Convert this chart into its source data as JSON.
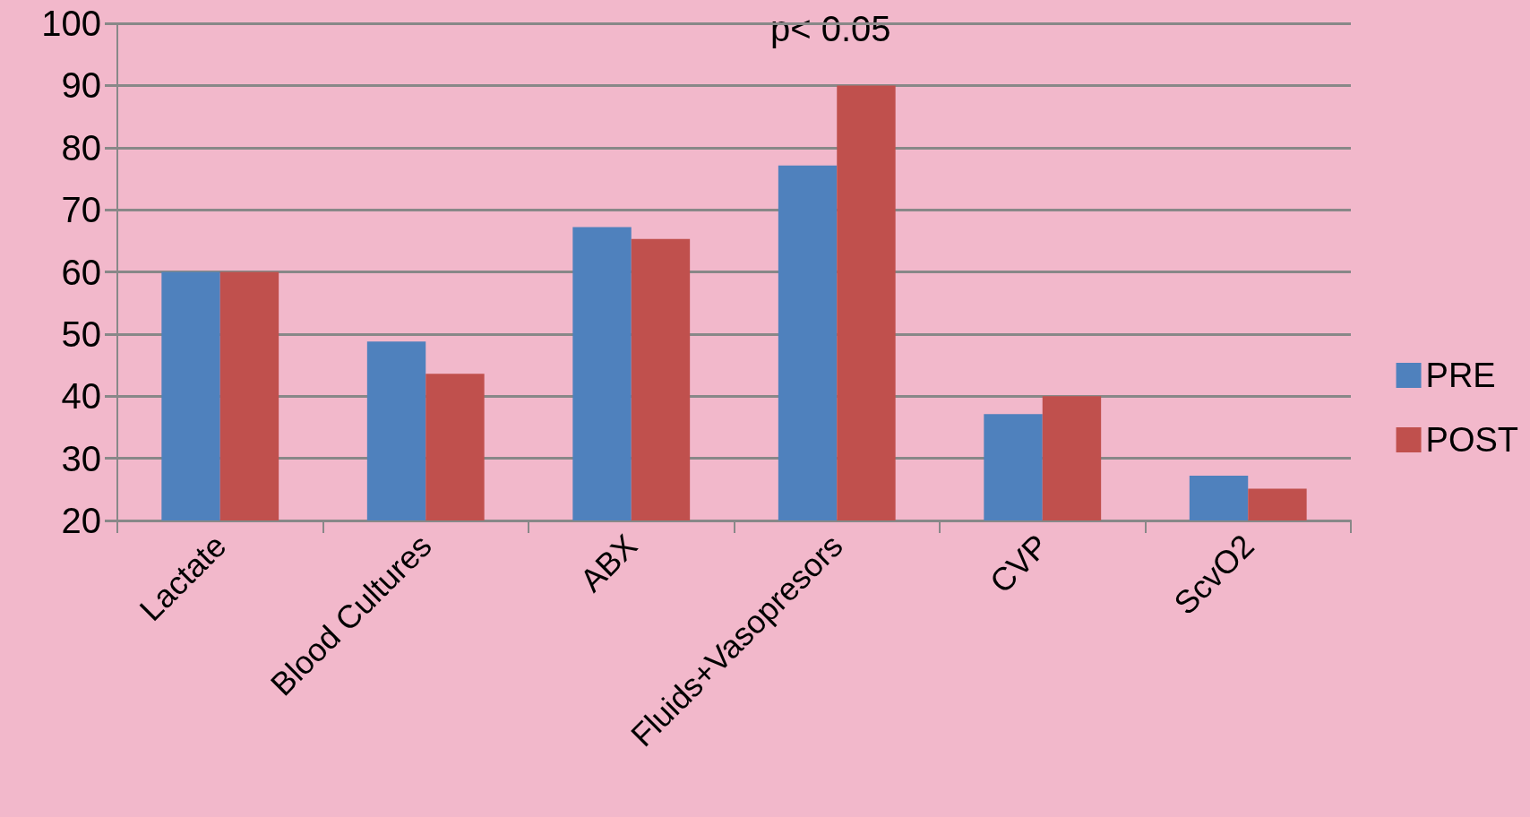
{
  "chart_data": {
    "type": "bar",
    "categories": [
      "Lactate",
      "Blood Cultures",
      "ABX",
      "Fluids+Vasopresors",
      "CVP",
      "ScvO2"
    ],
    "series": [
      {
        "name": "PRE",
        "color": "#4f81bd",
        "values": [
          60,
          48.8,
          67.2,
          77.1,
          37.1,
          27.2
        ]
      },
      {
        "name": "POST",
        "color": "#c0504d",
        "values": [
          60,
          43.6,
          65.3,
          90,
          40,
          25.1
        ]
      }
    ],
    "ylim": [
      20,
      100
    ],
    "yticks": [
      20,
      30,
      40,
      50,
      60,
      70,
      80,
      90,
      100
    ],
    "grid": "y",
    "legend": "right",
    "annotations": [
      "p< 0.05"
    ]
  }
}
